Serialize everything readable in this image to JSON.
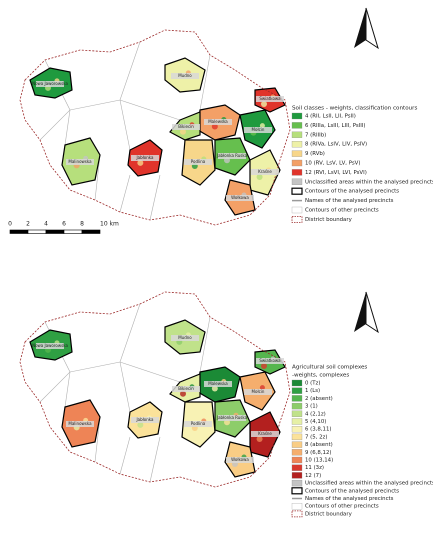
{
  "precincts": [
    "Nowa Jaworowska",
    "Mudno",
    "Jabłonka",
    "Malinowska",
    "Malewska",
    "Jabłonka Ruska",
    "Podlina",
    "Mołcin",
    "Kraśne",
    "Swiatkowa",
    "Bikiecin",
    "Wołkowa"
  ],
  "scale_bar": {
    "labels": [
      "0",
      "2",
      "4",
      "6",
      "8",
      "10 km"
    ]
  },
  "panels": [
    {
      "legend_title": [
        "Soil classes - weights, classification contours"
      ],
      "items": [
        {
          "label": "4 (RII, LsII, LII, PsII)",
          "symbol": "fill",
          "color": "#1f9a3e"
        },
        {
          "label": "6 (RIIIa, LsIII, LIII, PsIII)",
          "symbol": "fill",
          "color": "#66bf4e"
        },
        {
          "label": "7 (RIIIb)",
          "symbol": "fill",
          "color": "#b6df7c"
        },
        {
          "label": "8 (RIVa, LsIV, LIV, PsIV)",
          "symbol": "fill",
          "color": "#eef1a8"
        },
        {
          "label": "9 (RVb)",
          "symbol": "fill",
          "color": "#f7d68a"
        },
        {
          "label": "10 (RV, LsV, LV, PsV)",
          "symbol": "fill",
          "color": "#f3a067"
        },
        {
          "label": "12 (RVI, LsVI, LVI, PsVI)",
          "symbol": "fill",
          "color": "#e0342b"
        },
        {
          "label": "Unclassified areas within the analysed precincts",
          "symbol": "fill",
          "color": "#c4c4c4"
        },
        {
          "label": "Contours of the analysed precincts",
          "symbol": "outline",
          "color": "#000000"
        },
        {
          "label": "Names of the analysed precincts",
          "symbol": "line",
          "color": "#9a9a9a"
        },
        {
          "label": "Contours of other precincts",
          "symbol": "contour",
          "color": "#b0b0b0"
        },
        {
          "label": "District boundary",
          "symbol": "dashed",
          "color": "#9c2a2a"
        }
      ]
    },
    {
      "legend_title": [
        "Agricultural soil complexes",
        "-weights, complexes"
      ],
      "items": [
        {
          "label": "0 (Tz)",
          "symbol": "fill",
          "color": "#1b8a36"
        },
        {
          "label": "1 (Ls)",
          "symbol": "fill",
          "color": "#2fa043"
        },
        {
          "label": "2 (absent)",
          "symbol": "fill",
          "color": "#55b64e"
        },
        {
          "label": "3 (1)",
          "symbol": "fill",
          "color": "#8dcd6a"
        },
        {
          "label": "4 (2,1z)",
          "symbol": "fill",
          "color": "#c0e28a"
        },
        {
          "label": "5 (4,10)",
          "symbol": "fill",
          "color": "#e6f0a6"
        },
        {
          "label": "6 (3,8,11)",
          "symbol": "fill",
          "color": "#f8f2b4"
        },
        {
          "label": "7 (5, 2z)",
          "symbol": "fill",
          "color": "#fbe29a"
        },
        {
          "label": "8 (absent)",
          "symbol": "fill",
          "color": "#f9cd85"
        },
        {
          "label": "9 (6,8,12)",
          "symbol": "fill",
          "color": "#f5ae6d"
        },
        {
          "label": "10 (13,14)",
          "symbol": "fill",
          "color": "#ee8456"
        },
        {
          "label": "11 (3z)",
          "symbol": "fill",
          "color": "#d8382e"
        },
        {
          "label": "12 (7)",
          "symbol": "fill",
          "color": "#b3201f"
        },
        {
          "label": "Unclassified areas within the analysed precincts",
          "symbol": "fill",
          "color": "#c4c4c4"
        },
        {
          "label": "Contours of the analysed precincts",
          "symbol": "outline",
          "color": "#000000"
        },
        {
          "label": "Names of the analysed precincts",
          "symbol": "line",
          "color": "#9a9a9a"
        },
        {
          "label": "Contours of other precincts",
          "symbol": "contour",
          "color": "#b0b0b0"
        },
        {
          "label": "District boundary",
          "symbol": "dashed",
          "color": "#9c2a2a"
        }
      ]
    }
  ]
}
